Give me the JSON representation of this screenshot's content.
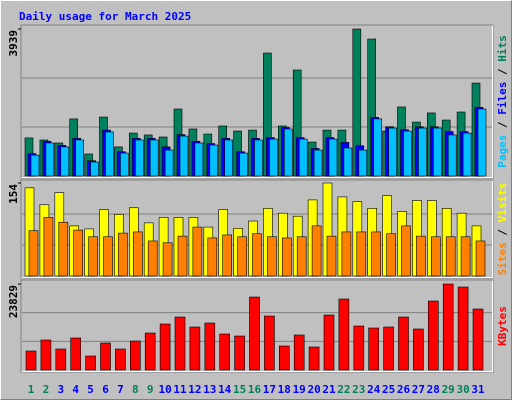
{
  "title": "Daily usage for March 2025",
  "chart_data": [
    {
      "type": "bar",
      "ylim": [
        0,
        3939
      ],
      "yticks": [
        3939
      ],
      "series": [
        {
          "name": "Hits",
          "color": "#00805c",
          "values": [
            1020,
            965,
            885,
            1530,
            590,
            1580,
            780,
            1150,
            1100,
            1045,
            1795,
            1260,
            1125,
            1340,
            1205,
            1230,
            3295,
            1340,
            2840,
            910,
            1230,
            1230,
            3939,
            3670,
            1205,
            1850,
            1445,
            1690,
            1500,
            1715,
            2490
          ]
        },
        {
          "name": "Files",
          "color": "#0000ff",
          "values": [
            600,
            930,
            820,
            1010,
            410,
            1230,
            650,
            1010,
            1010,
            780,
            1110,
            930,
            870,
            1010,
            650,
            1010,
            1030,
            1300,
            1030,
            740,
            1030,
            900,
            810,
            1570,
            1320,
            1240,
            1320,
            1320,
            1190,
            1190,
            1840
          ]
        },
        {
          "name": "Pages",
          "color": "#00c0ff",
          "values": [
            560,
            885,
            780,
            965,
            375,
            1180,
            615,
            965,
            965,
            695,
            1070,
            885,
            830,
            965,
            615,
            965,
            990,
            1260,
            990,
            695,
            990,
            750,
            695,
            1530,
            1285,
            1205,
            1285,
            1285,
            1100,
            1150,
            1795
          ]
        }
      ]
    },
    {
      "type": "bar",
      "ylim": [
        0,
        154
      ],
      "yticks": [
        154
      ],
      "series": [
        {
          "name": "Visits",
          "color": "#ffff00",
          "values": [
            146,
            118,
            138,
            83,
            78,
            110,
            102,
            113,
            88,
            97,
            97,
            97,
            81,
            110,
            79,
            91,
            112,
            104,
            99,
            126,
            154,
            131,
            123,
            112,
            133,
            107,
            125,
            125,
            112,
            104,
            83
          ]
        },
        {
          "name": "Sites",
          "color": "#ff8000",
          "values": [
            75,
            97,
            89,
            76,
            65,
            65,
            71,
            73,
            58,
            55,
            66,
            81,
            63,
            68,
            65,
            70,
            65,
            63,
            65,
            83,
            66,
            73,
            73,
            73,
            70,
            83,
            66,
            65,
            65,
            65,
            58
          ]
        }
      ]
    },
    {
      "type": "bar",
      "ylim": [
        0,
        23829
      ],
      "yticks": [
        23829
      ],
      "categories": [
        "1",
        "2",
        "3",
        "4",
        "5",
        "6",
        "7",
        "8",
        "9",
        "10",
        "11",
        "12",
        "13",
        "14",
        "15",
        "16",
        "17",
        "18",
        "19",
        "20",
        "21",
        "22",
        "23",
        "24",
        "25",
        "26",
        "27",
        "28",
        "29",
        "30",
        "31"
      ],
      "category_colors": [
        "#00805c",
        "#00805c",
        "#0000ff",
        "#0000ff",
        "#0000ff",
        "#0000ff",
        "#0000ff",
        "#00805c",
        "#00805c",
        "#0000ff",
        "#0000ff",
        "#0000ff",
        "#0000ff",
        "#0000ff",
        "#00805c",
        "#00805c",
        "#0000ff",
        "#0000ff",
        "#0000ff",
        "#0000ff",
        "#0000ff",
        "#00805c",
        "#00805c",
        "#0000ff",
        "#0000ff",
        "#0000ff",
        "#0000ff",
        "#0000ff",
        "#00805c",
        "#00805c",
        "#0000ff"
      ],
      "series": [
        {
          "name": "KBytes",
          "color": "#ff0000",
          "values": [
            5263,
            8310,
            5817,
            8864,
            3878,
            7479,
            5817,
            8033,
            10249,
            12742,
            14681,
            11911,
            13019,
            9972,
            9418,
            20221,
            14958,
            6648,
            9695,
            6371,
            15235,
            19667,
            12188,
            11634,
            11911,
            14681,
            11357,
            19113,
            23829,
            22991,
            16897
          ]
        }
      ]
    }
  ]
}
